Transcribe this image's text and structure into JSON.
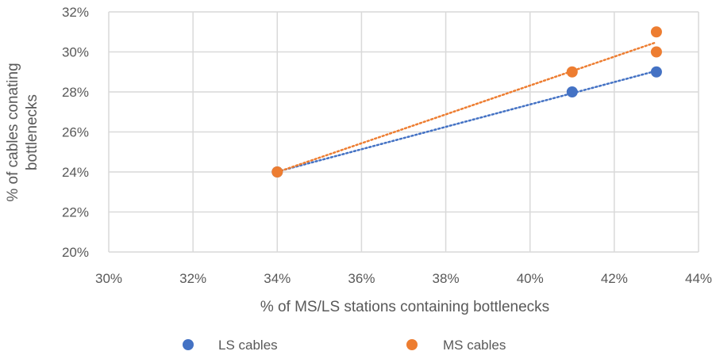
{
  "chart_data": {
    "type": "scatter",
    "title": "",
    "xlabel": "% of MS/LS stations containing bottlenecks",
    "ylabel_lines": [
      "% of cables conating",
      "bottlenecks"
    ],
    "xlim": [
      30,
      44
    ],
    "ylim": [
      20,
      32
    ],
    "x_ticks": [
      30,
      32,
      34,
      36,
      38,
      40,
      42,
      44
    ],
    "y_ticks": [
      20,
      22,
      24,
      26,
      28,
      30,
      32
    ],
    "x_tick_labels": [
      "30%",
      "32%",
      "34%",
      "36%",
      "38%",
      "40%",
      "42%",
      "44%"
    ],
    "y_tick_labels": [
      "20%",
      "22%",
      "24%",
      "26%",
      "28%",
      "30%",
      "32%"
    ],
    "grid": true,
    "legend_position": "bottom",
    "trendline": "linear, dotted",
    "series": [
      {
        "name": "LS cables",
        "color": "#4472C4",
        "points": [
          [
            34,
            24
          ],
          [
            41,
            28
          ],
          [
            43,
            29
          ]
        ]
      },
      {
        "name": "MS cables",
        "color": "#ED7D31",
        "points": [
          [
            34,
            24
          ],
          [
            41,
            29
          ],
          [
            43,
            30
          ],
          [
            43,
            31
          ]
        ]
      }
    ]
  }
}
